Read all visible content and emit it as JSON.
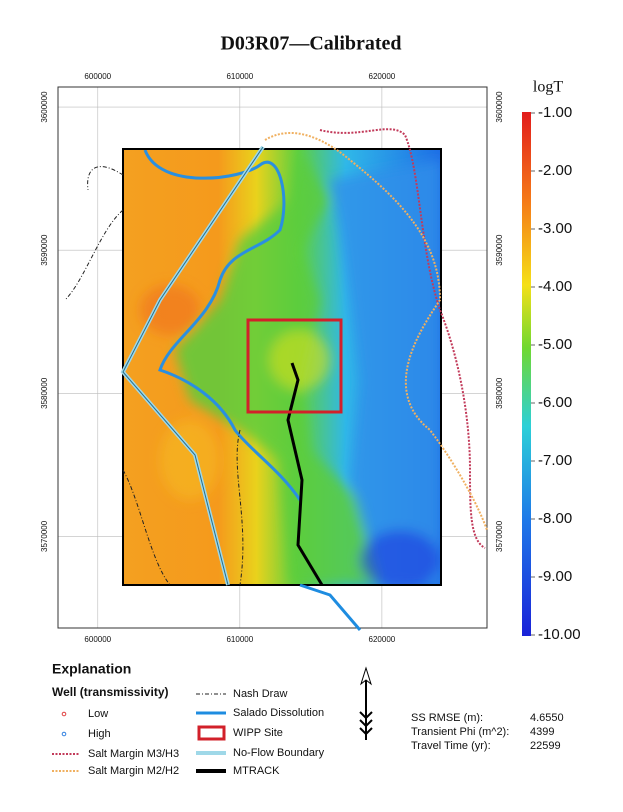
{
  "title": "D03R07—Calibrated",
  "map": {
    "xlim": [
      597200,
      627400
    ],
    "ylim": [
      3563600,
      3601400
    ],
    "xticks": [
      600000,
      610000,
      620000
    ],
    "yticks": [
      3570000,
      3580000,
      3590000,
      3600000
    ]
  },
  "colorbar": {
    "label": "logT",
    "lim": [
      -10,
      -1
    ],
    "ticks": [
      {
        "value": -1,
        "label": "-1.00"
      },
      {
        "value": -2,
        "label": "-2.00"
      },
      {
        "value": -3,
        "label": "-3.00"
      },
      {
        "value": -4,
        "label": "-4.00"
      },
      {
        "value": -5,
        "label": "-5.00"
      },
      {
        "value": -6,
        "label": "-6.00"
      },
      {
        "value": -7,
        "label": "-7.00"
      },
      {
        "value": -8,
        "label": "-8.00"
      },
      {
        "value": -9,
        "label": "-9.00"
      },
      {
        "value": -10,
        "label": "-10.00"
      }
    ]
  },
  "legend": {
    "title": "Explanation",
    "subtitle": "Well (transmissivity)",
    "items": [
      "Low",
      "High",
      "Salt Margin M3/H3",
      "Salt Margin M2/H2",
      "Nash Draw",
      "Salado Dissolution",
      "WIPP Site",
      "No-Flow Boundary",
      "MTRACK"
    ]
  },
  "stats": {
    "rows": [
      [
        "SS RMSE (m):",
        "4.6550"
      ],
      [
        "Transient Phi (m^2):",
        "4399"
      ],
      [
        "Travel Time (yr):",
        "22599"
      ]
    ]
  }
}
